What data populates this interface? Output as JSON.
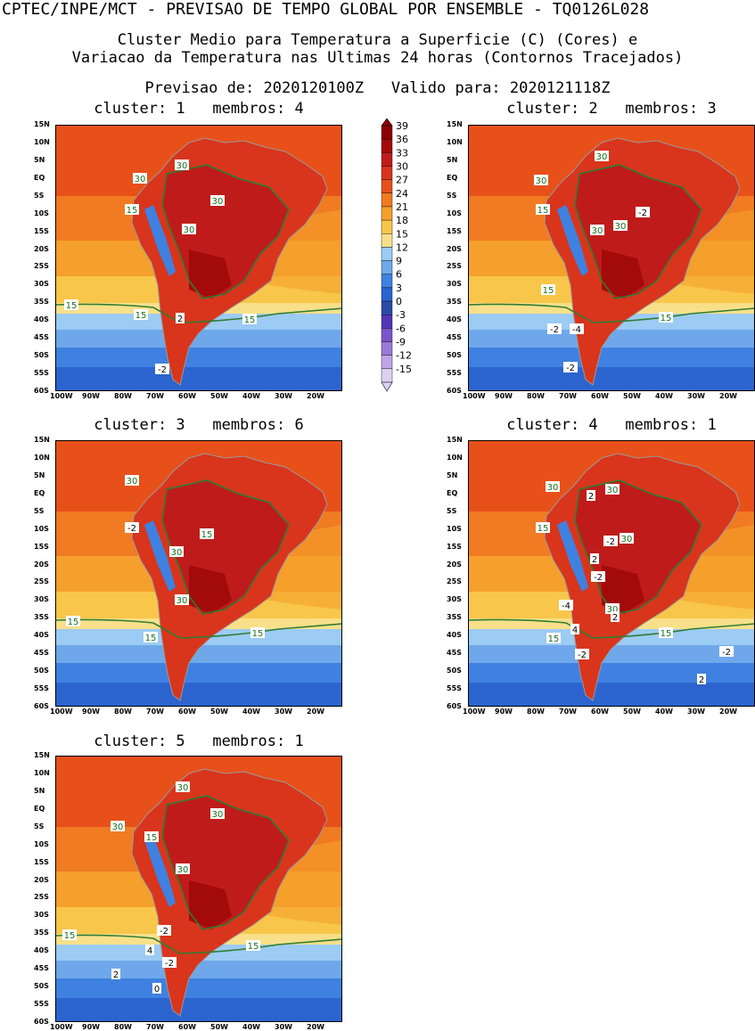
{
  "header": {
    "title": "CPTEC/INPE/MCT - PREVISAO DE TEMPO GLOBAL POR ENSEMBLE - TQ0126L028",
    "subtitle_line1": "Cluster Medio para Temperatura a Superficie (C) (Cores) e",
    "subtitle_line2": "Variacao da Temperatura nas Ultimas 24 horas (Contornos Tracejados)",
    "forecast_line": "Previsao de: 2020120100Z   Valido para: 2020121118Z"
  },
  "lat_ticks": [
    "15N",
    "10N",
    "5N",
    "EQ",
    "5S",
    "10S",
    "15S",
    "20S",
    "25S",
    "30S",
    "35S",
    "40S",
    "45S",
    "50S",
    "55S",
    "60S"
  ],
  "lon_ticks": [
    "100W",
    "90W",
    "80W",
    "70W",
    "60W",
    "50W",
    "40W",
    "30W",
    "20W"
  ],
  "colorbar": {
    "labels": [
      "39",
      "36",
      "33",
      "30",
      "27",
      "24",
      "21",
      "18",
      "15",
      "12",
      "9",
      "6",
      "3",
      "0",
      "-3",
      "-6",
      "-9",
      "-12",
      "-15"
    ],
    "colors": [
      "#8b0000",
      "#a30b0b",
      "#c01b1b",
      "#d8351c",
      "#e8501a",
      "#f07b22",
      "#f5a02c",
      "#f8c64a",
      "#f8e08a",
      "#9ccbf3",
      "#6fa8ea",
      "#3f81e0",
      "#2c64cf",
      "#2a4aa8",
      "#5236b5",
      "#7a55cc",
      "#9a7ad9",
      "#bda5e6",
      "#ddd0f2"
    ]
  },
  "clusters": [
    {
      "label": "cluster: 1   membros: 4",
      "contours": [
        "30",
        "30",
        "30",
        "30",
        "15",
        "15",
        "15",
        "15",
        "2",
        "-2"
      ]
    },
    {
      "label": "cluster: 2   membros: 3",
      "contours": [
        "30",
        "30",
        "-2",
        "30",
        "30",
        "15",
        "15",
        "15",
        "-2",
        "-4",
        "-2"
      ]
    },
    {
      "label": "cluster: 3   membros: 6",
      "contours": [
        "30",
        "15",
        "30",
        "30",
        "-2",
        "15",
        "15",
        "15"
      ]
    },
    {
      "label": "cluster: 4   membros: 1",
      "contours": [
        "30",
        "2",
        "30",
        "-2",
        "30",
        "2",
        "-2",
        "15",
        "-4",
        "30",
        "2",
        "4",
        "15",
        "-2",
        "15",
        "-2",
        "2"
      ]
    },
    {
      "label": "cluster: 5   membros: 1",
      "contours": [
        "30",
        "30",
        "30",
        "15",
        "30",
        "-2",
        "15",
        "15",
        "4",
        "-2",
        "2",
        "0"
      ]
    }
  ]
}
